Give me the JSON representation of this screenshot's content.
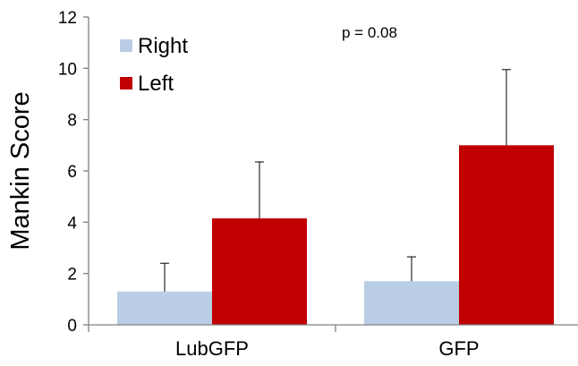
{
  "chart_data": {
    "type": "bar",
    "title": "",
    "xlabel": "",
    "ylabel": "Mankin Score",
    "ylim": [
      0,
      12
    ],
    "yticks": [
      0,
      2,
      4,
      6,
      8,
      10,
      12
    ],
    "categories": [
      "LubGFP",
      "GFP"
    ],
    "series": [
      {
        "name": "Right",
        "color": "#b9cde5",
        "values": [
          1.3,
          1.7
        ],
        "error": [
          1.1,
          0.95
        ]
      },
      {
        "name": "Left",
        "color": "#c00000",
        "values": [
          4.15,
          7.0
        ],
        "error": [
          2.2,
          2.95
        ]
      }
    ],
    "error_bars": "upper",
    "grid": false,
    "legend_position": "top-left",
    "annotation": "p = 0.08"
  }
}
